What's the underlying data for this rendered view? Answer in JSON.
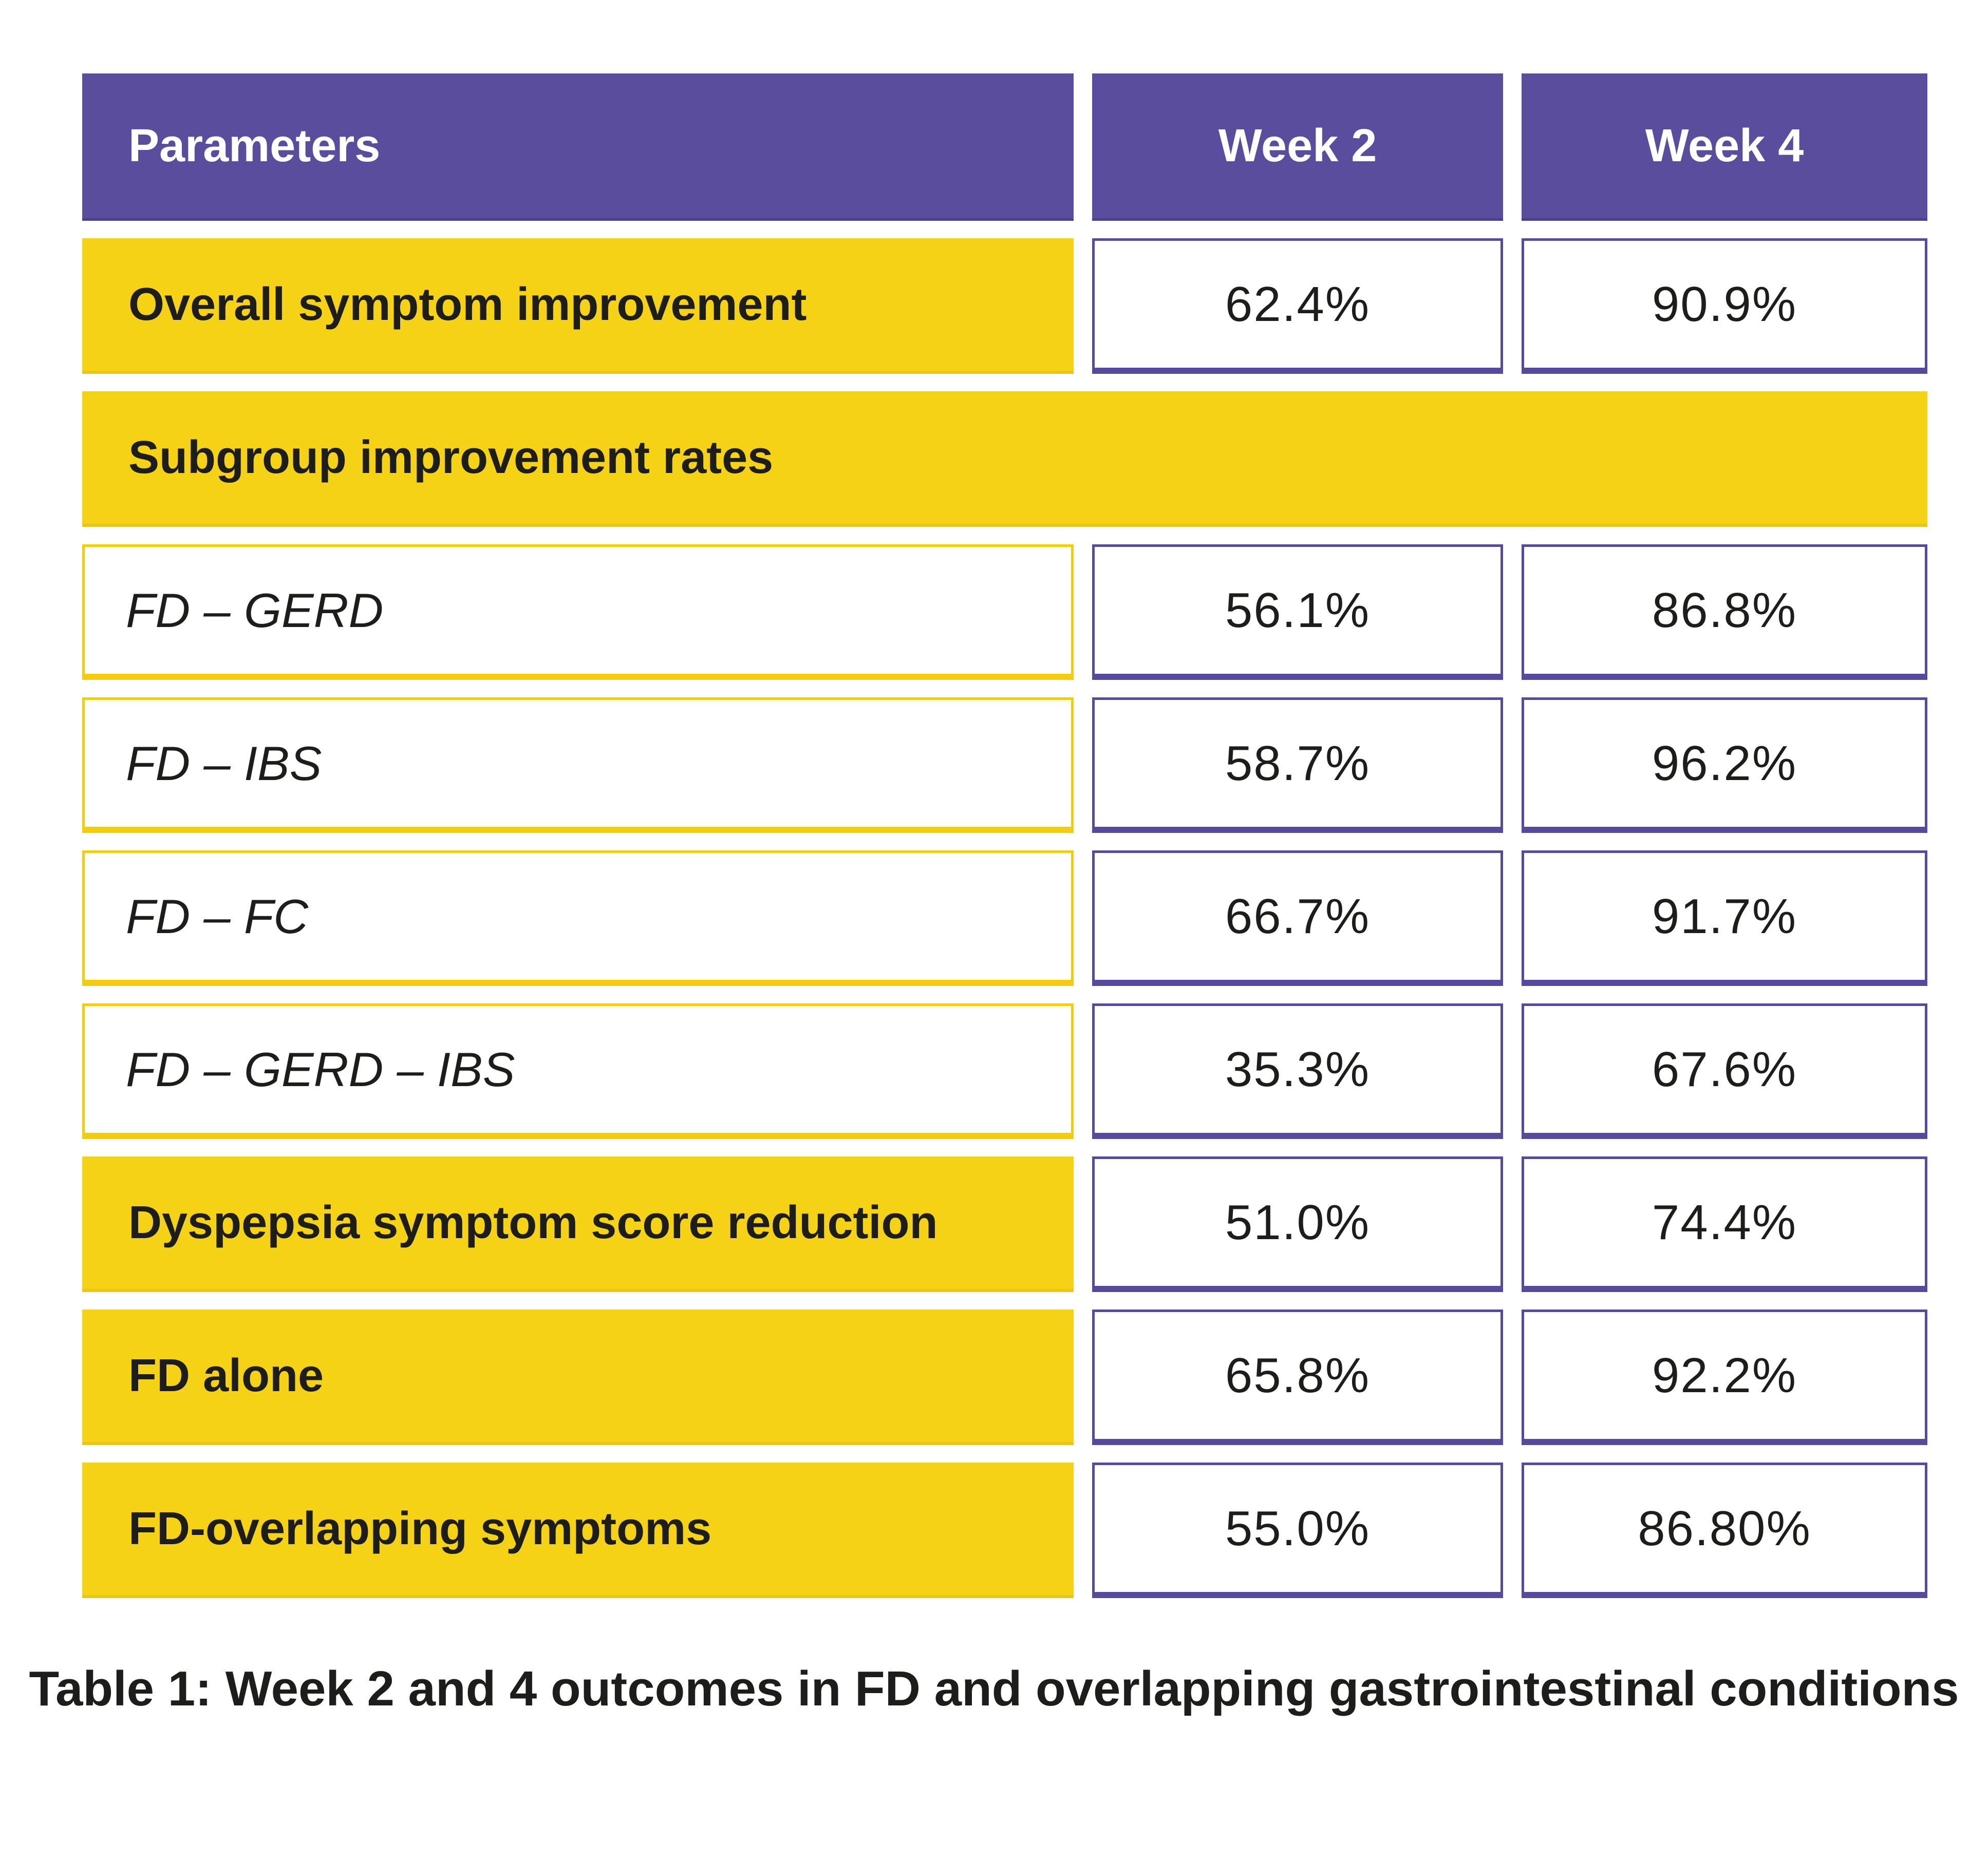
{
  "table": {
    "columns": [
      "Parameters",
      "Week 2",
      "Week 4"
    ],
    "rows": [
      {
        "label": "Overall symptom improvement",
        "week2": "62.4%",
        "week4": "90.9%"
      },
      {
        "label": "Subgroup improvement rates"
      },
      {
        "label": "FD – GERD",
        "week2": "56.1%",
        "week4": "86.8%"
      },
      {
        "label": "FD – IBS",
        "week2": "58.7%",
        "week4": "96.2%"
      },
      {
        "label": "FD – FC",
        "week2": "66.7%",
        "week4": "91.7%"
      },
      {
        "label": "FD – GERD – IBS",
        "week2": "35.3%",
        "week4": "67.6%"
      },
      {
        "label": "Dyspepsia symptom score reduction",
        "week2": "51.0%",
        "week4": "74.4%"
      },
      {
        "label": "FD alone",
        "week2": "65.8%",
        "week4": "92.2%"
      },
      {
        "label": "FD-overlapping symptoms",
        "week2": "55.0%",
        "week4": "86.80%"
      }
    ]
  },
  "caption": "Table 1: Week 2 and 4 outcomes in FD and overlapping gastrointestinal conditions",
  "colors": {
    "header_bg": "#5a4d9e",
    "header_text": "#ffffff",
    "yellow_bg": "#f6d216",
    "yellow_border": "#f3cc0f",
    "value_border": "#564b9b",
    "text": "#1d1d1b"
  }
}
